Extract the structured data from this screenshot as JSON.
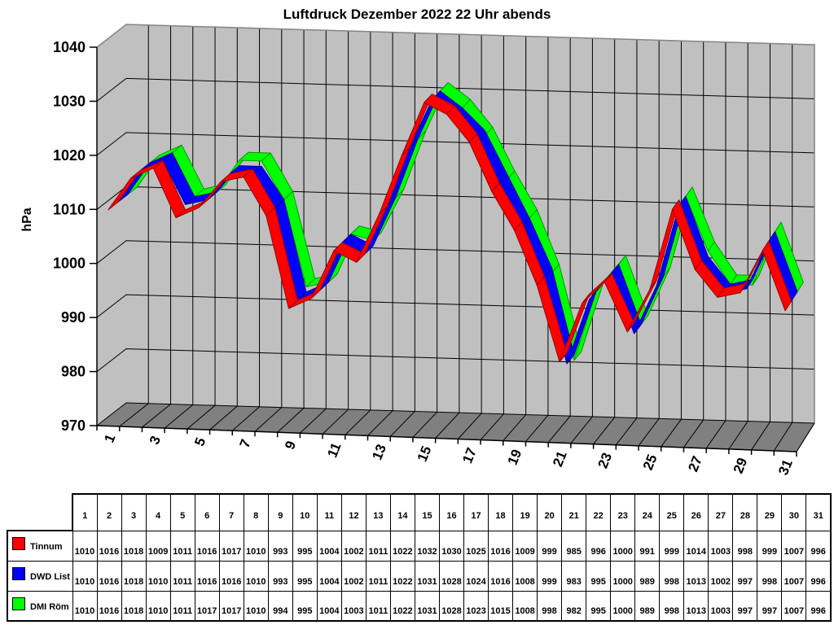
{
  "title": "Luftdruck Dezember 2022 22 Uhr abends",
  "y_axis_label": "hPa",
  "chart_data": {
    "type": "line",
    "style": "3d-ribbon",
    "title": "Luftdruck Dezember 2022 22 Uhr abends",
    "ylabel": "hPa",
    "ylim": [
      970,
      1040
    ],
    "ytick_step": 10,
    "ytick_labels": [
      "970",
      "980",
      "990",
      "1000",
      "1010",
      "1020",
      "1030",
      "1040"
    ],
    "x": [
      1,
      2,
      3,
      4,
      5,
      6,
      7,
      8,
      9,
      10,
      11,
      12,
      13,
      14,
      15,
      16,
      17,
      18,
      19,
      20,
      21,
      22,
      23,
      24,
      25,
      26,
      27,
      28,
      29,
      30,
      31
    ],
    "xtick_labels": [
      "1",
      "3",
      "5",
      "7",
      "9",
      "11",
      "13",
      "15",
      "17",
      "19",
      "21",
      "23",
      "25",
      "27",
      "29",
      "31"
    ],
    "grid": true,
    "legend_position": "data-table-left",
    "wall_color": "#c0c0c0",
    "floor_color": "#808080",
    "wall_edge_color": "#848484",
    "gridline_color": "#000000",
    "series": [
      {
        "name": "Tinnum",
        "color": "#ff0000",
        "edge_color": "#990000",
        "values": [
          1010,
          1016,
          1018,
          1009,
          1011,
          1016,
          1017,
          1010,
          993,
          995,
          1004,
          1002,
          1011,
          1022,
          1032,
          1030,
          1025,
          1016,
          1009,
          999,
          985,
          996,
          1000,
          991,
          999,
          1014,
          1003,
          998,
          999,
          1007,
          996
        ]
      },
      {
        "name": "DWD List",
        "color": "#0000ff",
        "edge_color": "#000099",
        "values": [
          1010,
          1016,
          1018,
          1010,
          1011,
          1016,
          1016,
          1010,
          993,
          995,
          1004,
          1002,
          1011,
          1022,
          1031,
          1028,
          1024,
          1016,
          1008,
          999,
          983,
          995,
          1000,
          989,
          998,
          1013,
          1002,
          997,
          998,
          1007,
          996
        ]
      },
      {
        "name": "DMI Röm",
        "color": "#00ff00",
        "edge_color": "#009900",
        "values": [
          1010,
          1016,
          1018,
          1010,
          1011,
          1017,
          1017,
          1010,
          994,
          995,
          1004,
          1003,
          1011,
          1022,
          1031,
          1028,
          1023,
          1015,
          1008,
          998,
          982,
          995,
          1000,
          989,
          998,
          1013,
          1003,
          997,
          997,
          1007,
          996
        ]
      }
    ]
  }
}
